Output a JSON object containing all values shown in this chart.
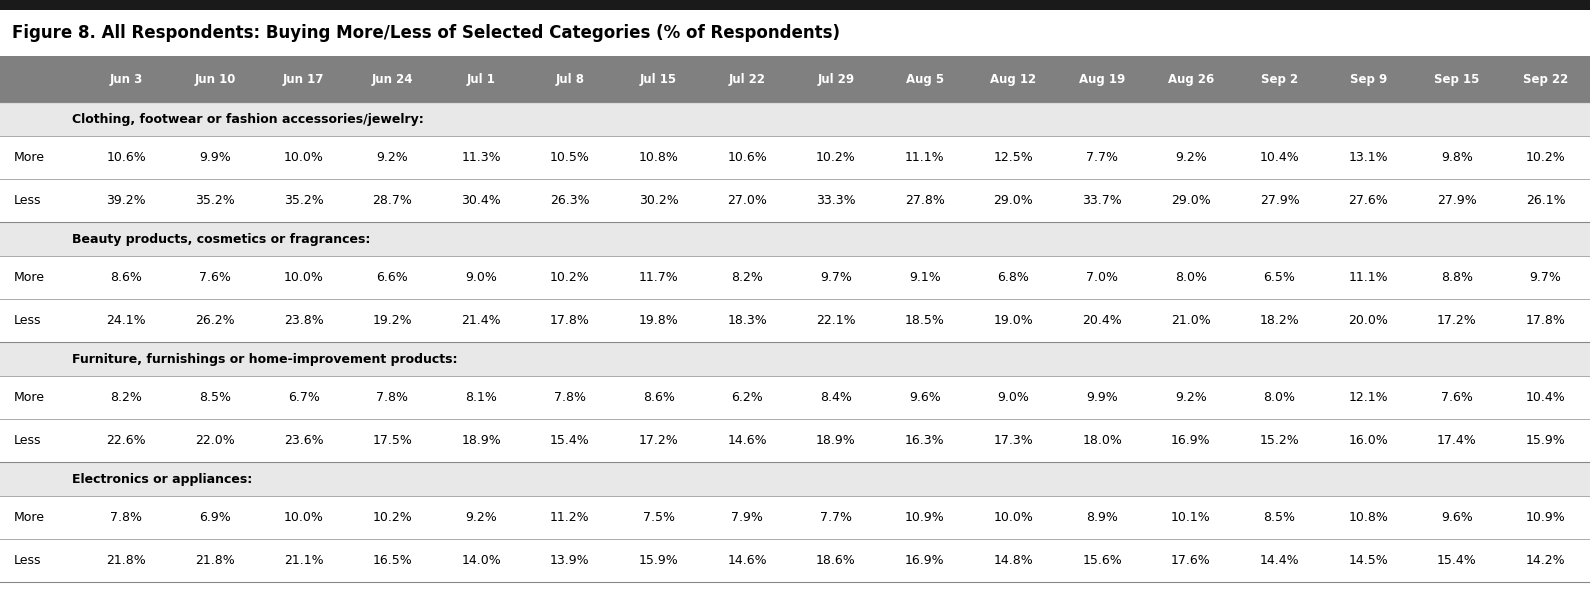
{
  "title": "Figure 8. All Respondents: Buying More/Less of Selected Categories (% of Respondents)",
  "columns": [
    "Jun 3",
    "Jun 10",
    "Jun 17",
    "Jun 24",
    "Jul 1",
    "Jul 8",
    "Jul 15",
    "Jul 22",
    "Jul 29",
    "Aug 5",
    "Aug 12",
    "Aug 19",
    "Aug 26",
    "Sep 2",
    "Sep 9",
    "Sep 15",
    "Sep 22"
  ],
  "sections": [
    {
      "header": "Clothing, footwear or fashion accessories/jewelry:",
      "rows": [
        {
          "label": "More",
          "values": [
            "10.6%",
            "9.9%",
            "10.0%",
            "9.2%",
            "11.3%",
            "10.5%",
            "10.8%",
            "10.6%",
            "10.2%",
            "11.1%",
            "12.5%",
            "7.7%",
            "9.2%",
            "10.4%",
            "13.1%",
            "9.8%",
            "10.2%"
          ]
        },
        {
          "label": "Less",
          "values": [
            "39.2%",
            "35.2%",
            "35.2%",
            "28.7%",
            "30.4%",
            "26.3%",
            "30.2%",
            "27.0%",
            "33.3%",
            "27.8%",
            "29.0%",
            "33.7%",
            "29.0%",
            "27.9%",
            "27.6%",
            "27.9%",
            "26.1%"
          ]
        }
      ]
    },
    {
      "header": "Beauty products, cosmetics or fragrances:",
      "rows": [
        {
          "label": "More",
          "values": [
            "8.6%",
            "7.6%",
            "10.0%",
            "6.6%",
            "9.0%",
            "10.2%",
            "11.7%",
            "8.2%",
            "9.7%",
            "9.1%",
            "6.8%",
            "7.0%",
            "8.0%",
            "6.5%",
            "11.1%",
            "8.8%",
            "9.7%"
          ]
        },
        {
          "label": "Less",
          "values": [
            "24.1%",
            "26.2%",
            "23.8%",
            "19.2%",
            "21.4%",
            "17.8%",
            "19.8%",
            "18.3%",
            "22.1%",
            "18.5%",
            "19.0%",
            "20.4%",
            "21.0%",
            "18.2%",
            "20.0%",
            "17.2%",
            "17.8%"
          ]
        }
      ]
    },
    {
      "header": "Furniture, furnishings or home-improvement products:",
      "rows": [
        {
          "label": "More",
          "values": [
            "8.2%",
            "8.5%",
            "6.7%",
            "7.8%",
            "8.1%",
            "7.8%",
            "8.6%",
            "6.2%",
            "8.4%",
            "9.6%",
            "9.0%",
            "9.9%",
            "9.2%",
            "8.0%",
            "12.1%",
            "7.6%",
            "10.4%"
          ]
        },
        {
          "label": "Less",
          "values": [
            "22.6%",
            "22.0%",
            "23.6%",
            "17.5%",
            "18.9%",
            "15.4%",
            "17.2%",
            "14.6%",
            "18.9%",
            "16.3%",
            "17.3%",
            "18.0%",
            "16.9%",
            "15.2%",
            "16.0%",
            "17.4%",
            "15.9%"
          ]
        }
      ]
    },
    {
      "header": "Electronics or appliances:",
      "rows": [
        {
          "label": "More",
          "values": [
            "7.8%",
            "6.9%",
            "10.0%",
            "10.2%",
            "9.2%",
            "11.2%",
            "7.5%",
            "7.9%",
            "7.7%",
            "10.9%",
            "10.0%",
            "8.9%",
            "10.1%",
            "8.5%",
            "10.8%",
            "9.6%",
            "10.9%"
          ]
        },
        {
          "label": "Less",
          "values": [
            "21.8%",
            "21.8%",
            "21.1%",
            "16.5%",
            "14.0%",
            "13.9%",
            "15.9%",
            "14.6%",
            "18.6%",
            "16.9%",
            "14.8%",
            "15.6%",
            "17.6%",
            "14.4%",
            "14.5%",
            "15.4%",
            "14.2%"
          ]
        }
      ]
    }
  ],
  "header_bg": "#808080",
  "header_text_color": "#ffffff",
  "section_header_bg": "#e8e8e8",
  "row_bg_white": "#ffffff",
  "text_color": "#000000",
  "top_bar_color": "#1a1a1a",
  "line_color": "#aaaaaa",
  "dashed_line_color": "#aaaaaa"
}
